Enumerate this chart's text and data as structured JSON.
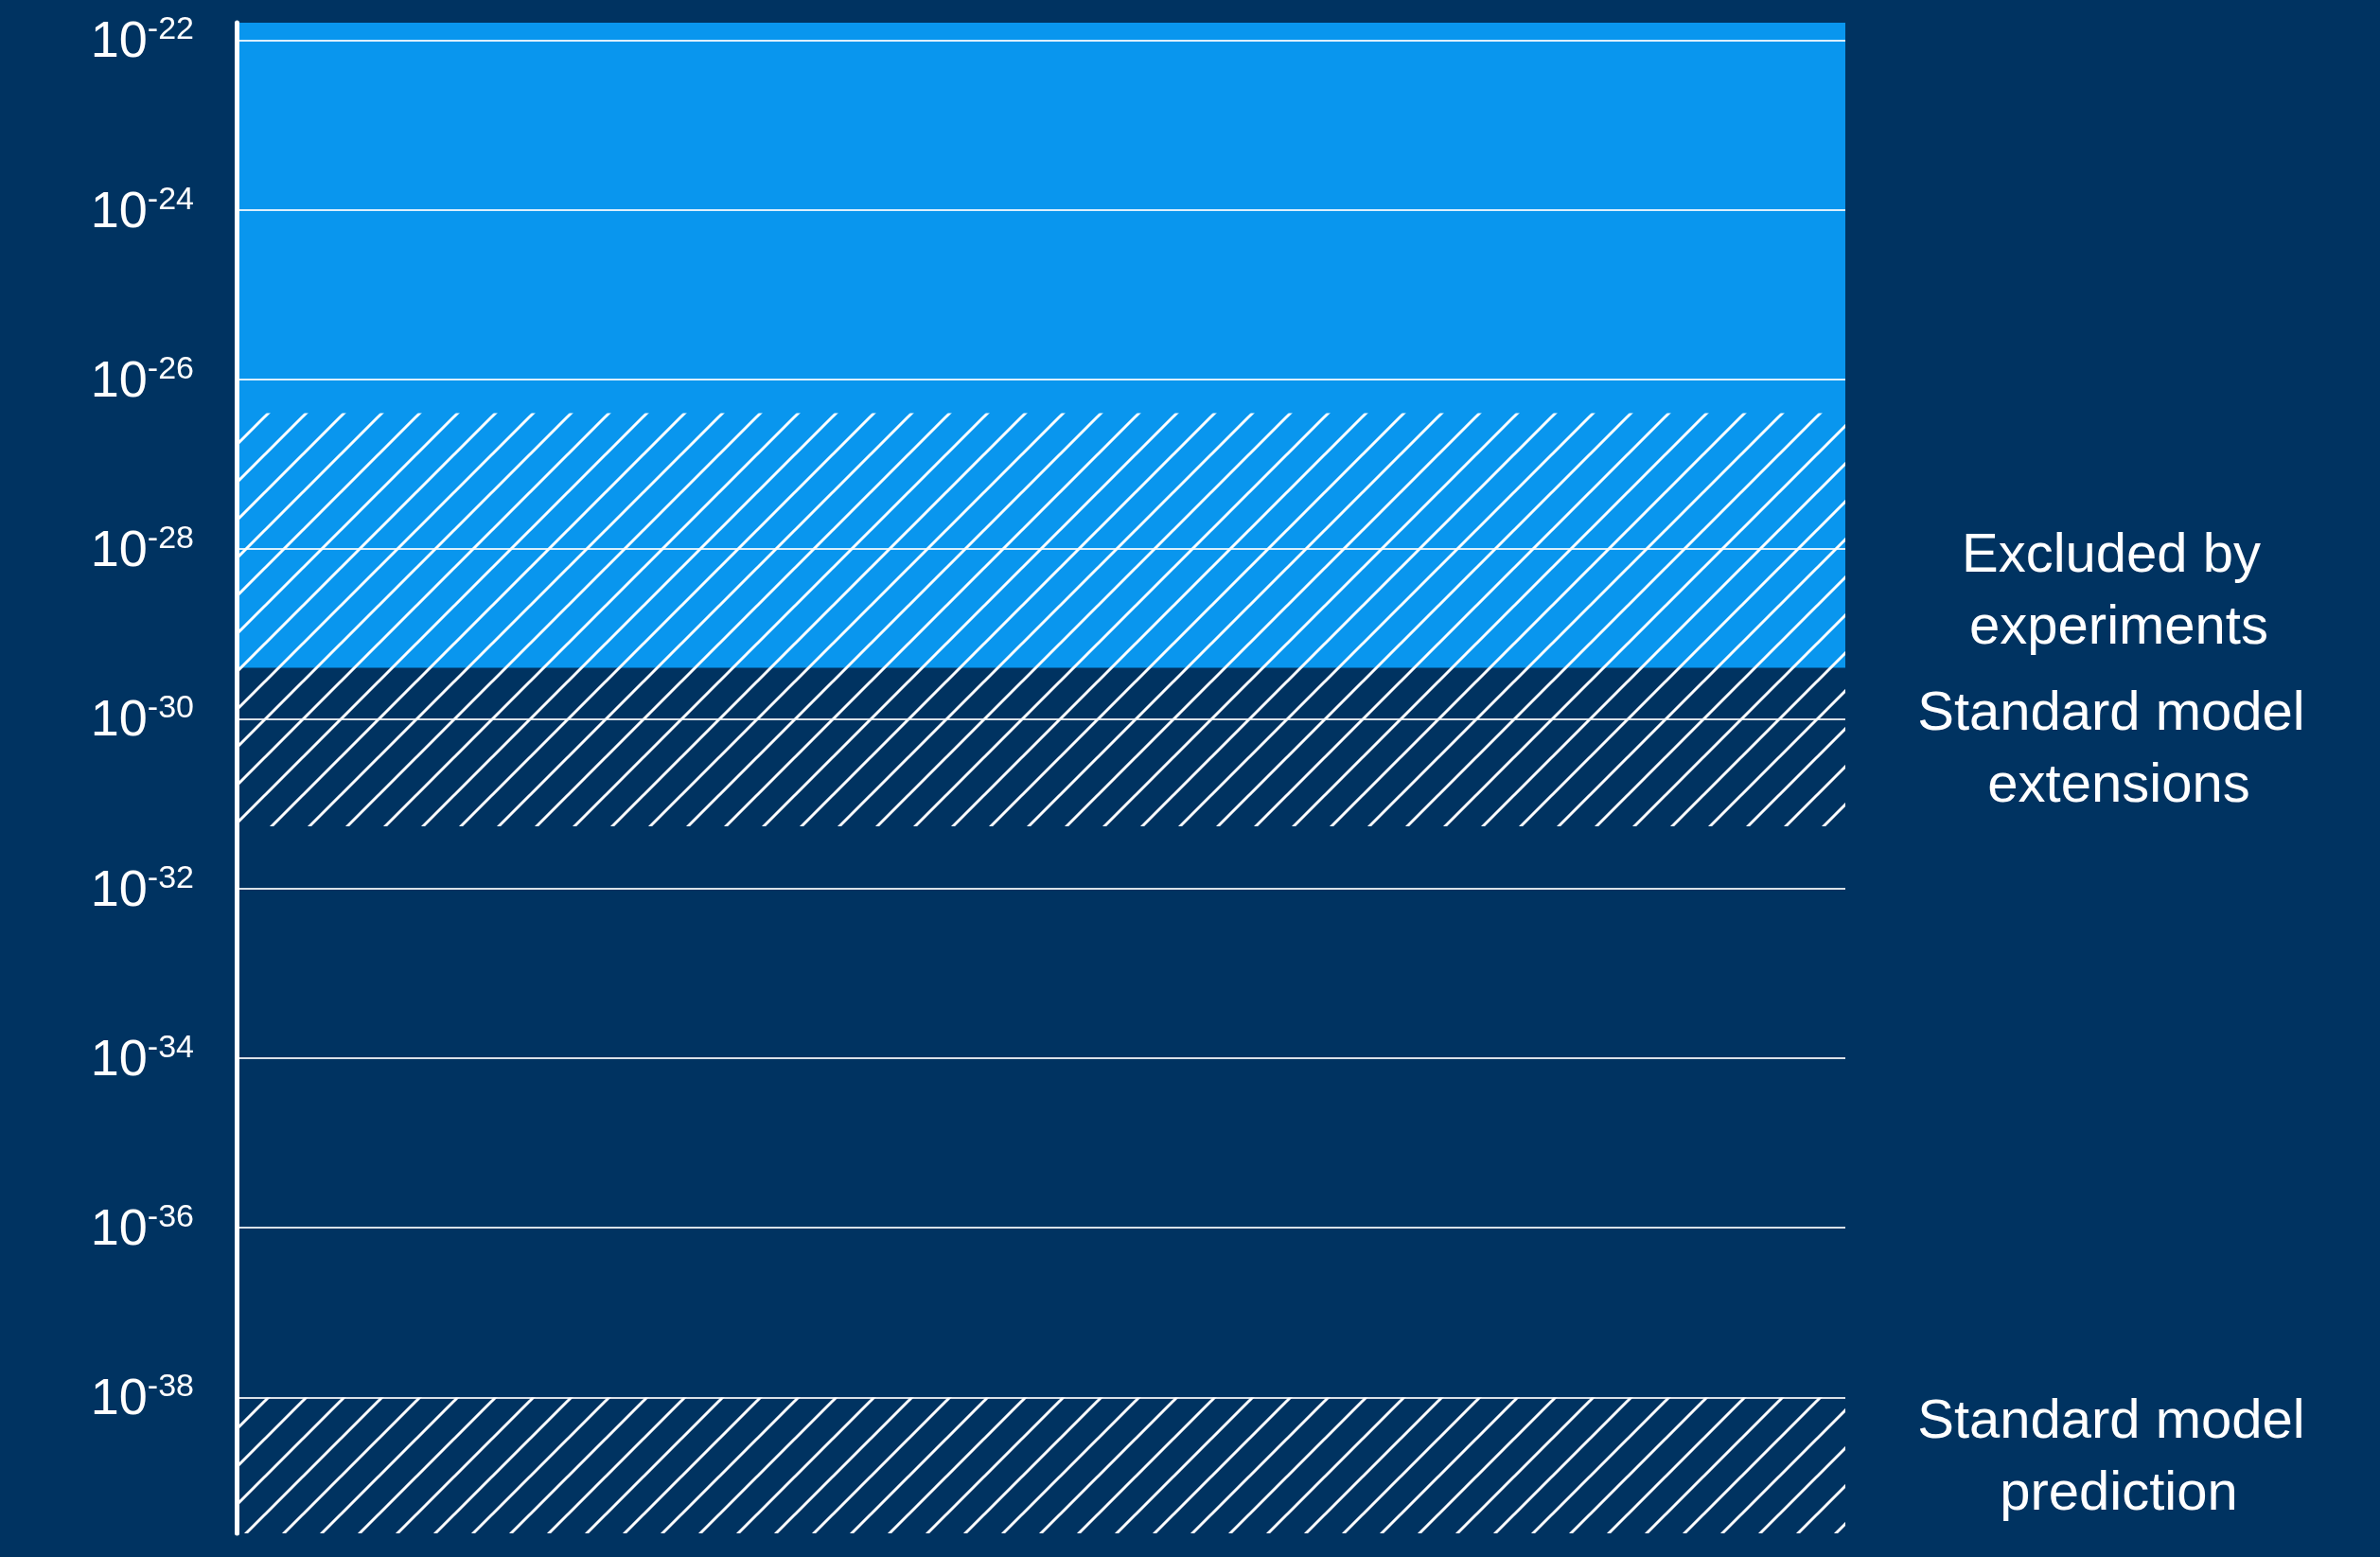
{
  "chart_data": {
    "type": "bar",
    "log": true,
    "grid": "y",
    "legend": false,
    "tick_labels": "y",
    "categories": [
      null
    ],
    "ylim": [
      2.5e-40,
      1.6e-22
    ],
    "yticks": [
      {
        "value": 1e-22,
        "label": "10$^{-22}$"
      },
      {
        "value": 1e-24,
        "label": "10$^{-24}$"
      },
      {
        "value": 1e-26,
        "label": "10$^{-26}$"
      },
      {
        "value": 1e-28,
        "label": "10$^{-28}$"
      },
      {
        "value": 1e-30,
        "label": "10$^{-30}$"
      },
      {
        "value": 1e-32,
        "label": "10$^{-32}$"
      },
      {
        "value": 1e-34,
        "label": "10$^{-34}$"
      },
      {
        "value": 1e-36,
        "label": "10$^{-36}$"
      },
      {
        "value": 1e-38,
        "label": "10$^{-38}$"
      }
    ],
    "series": [
      {
        "name": "Excluded by experiments",
        "color": "#0a9cf5",
        "base": [
          4e-30
        ],
        "values": [
          1.6e-22
        ]
      },
      {
        "name": "Standard model extensions",
        "color": "#ffffff",
        "base": [
          5.4e-32
        ],
        "values": [
          4e-27
        ]
      },
      {
        "name": "Standard model prediction",
        "color": "#ffffff",
        "base": [
          2.5e-40
        ],
        "values": [
          9.75e-39
        ]
      }
    ]
  }
}
